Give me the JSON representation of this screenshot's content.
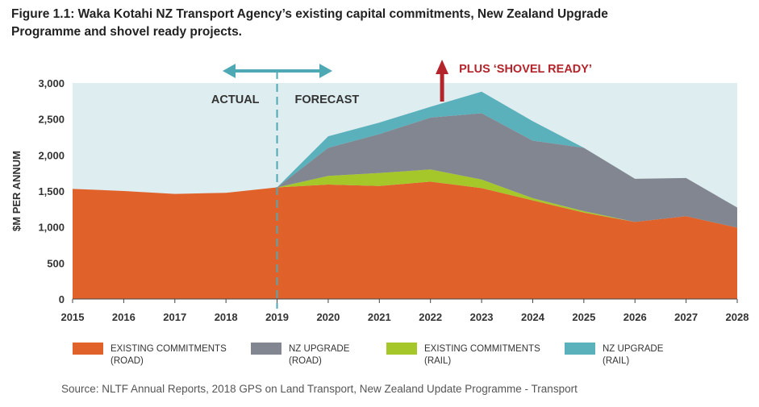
{
  "figure": {
    "title_line1": "Figure 1.1:  Waka Kotahi NZ Transport Agency’s existing capital commitments, New Zealand Upgrade",
    "title_line2": "Programme and shovel ready projects.",
    "source": "Source: NLTF Annual Reports, 2018 GPS on Land Transport, New Zealand Update Programme - Transport"
  },
  "chart_data": {
    "type": "area",
    "stacked": true,
    "x": [
      "2015",
      "2016",
      "2017",
      "2018",
      "2019",
      "2020",
      "2021",
      "2022",
      "2023",
      "2024",
      "2025",
      "2026",
      "2027",
      "2028"
    ],
    "ylabel": "$M PER ANNUM",
    "ylim": [
      0,
      3000
    ],
    "yticks": [
      0,
      500,
      1000,
      1500,
      2000,
      2500,
      3000
    ],
    "ytick_labels": [
      "0",
      "500",
      "1,000",
      "1,500",
      "2,000",
      "2,500",
      "3,000"
    ],
    "grid": false,
    "background": "#deedf0",
    "series": [
      {
        "name": "EXISTING COMMITMENTS (ROAD)",
        "color": "#e0622a",
        "values": [
          1530,
          1500,
          1460,
          1475,
          1550,
          1590,
          1570,
          1630,
          1540,
          1370,
          1200,
          1070,
          1150,
          990
        ]
      },
      {
        "name": "EXISTING COMMITMENTS (RAIL)",
        "color": "#a6c72a",
        "values": [
          0,
          0,
          0,
          0,
          0,
          120,
          180,
          170,
          120,
          30,
          20,
          0,
          0,
          0
        ]
      },
      {
        "name": "NZ UPGRADE (ROAD)",
        "color": "#818690",
        "values": [
          0,
          0,
          0,
          0,
          0,
          390,
          540,
          720,
          920,
          800,
          880,
          600,
          530,
          280
        ]
      },
      {
        "name": "NZ UPGRADE (RAIL)",
        "color": "#5ab0bb",
        "values": [
          0,
          0,
          0,
          0,
          0,
          160,
          160,
          150,
          300,
          270,
          0,
          0,
          0,
          0
        ]
      }
    ],
    "legend_order": [
      "EXISTING COMMITMENTS (ROAD)",
      "NZ UPGRADE (ROAD)",
      "EXISTING COMMITMENTS (RAIL)",
      "NZ UPGRADE (RAIL)"
    ],
    "legend_placement": "bottom",
    "annotations": {
      "actual": "ACTUAL",
      "forecast": "FORECAST",
      "divider_year": "2019",
      "shovel_ready": "PLUS ‘SHOVEL READY’",
      "shovel_ready_year": "2023",
      "arrow_color": "#4fa9b5",
      "shovel_color": "#b3242b"
    }
  }
}
